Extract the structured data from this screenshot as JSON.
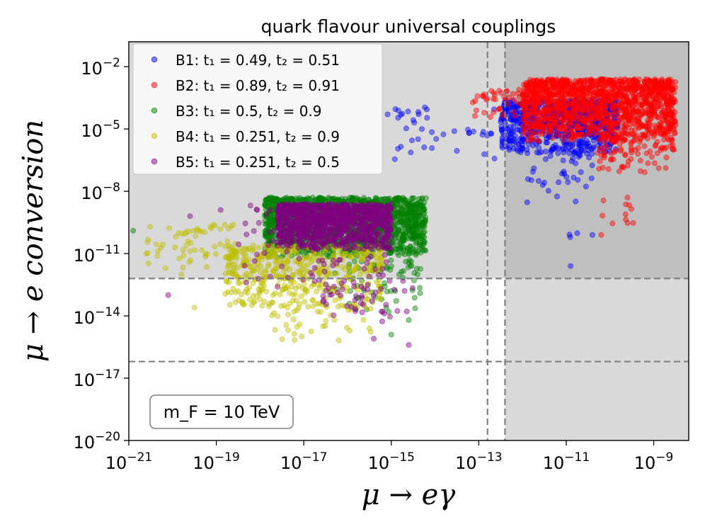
{
  "chart_data": {
    "type": "scatter",
    "title": "quark flavour universal couplings",
    "xlabel": "μ → eγ",
    "ylabel": "μ → e conversion",
    "x_scale": "log10",
    "y_scale": "log10",
    "xlim_exp": [
      -21,
      -8.2
    ],
    "ylim_exp": [
      -20,
      -0.8
    ],
    "x_ticks": [
      {
        "exp": -21,
        "base": "10",
        "sup": "−21"
      },
      {
        "exp": -19,
        "base": "10",
        "sup": "−19"
      },
      {
        "exp": -17,
        "base": "10",
        "sup": "−17"
      },
      {
        "exp": -15,
        "base": "10",
        "sup": "−15"
      },
      {
        "exp": -13,
        "base": "10",
        "sup": "−13"
      },
      {
        "exp": -11,
        "base": "10",
        "sup": "−11"
      },
      {
        "exp": -9,
        "base": "10",
        "sup": "−9"
      }
    ],
    "y_ticks": [
      {
        "exp": -20,
        "base": "10",
        "sup": "−20"
      },
      {
        "exp": -17,
        "base": "10",
        "sup": "−17"
      },
      {
        "exp": -14,
        "base": "10",
        "sup": "−14"
      },
      {
        "exp": -11,
        "base": "10",
        "sup": "−11"
      },
      {
        "exp": -8,
        "base": "10",
        "sup": "−8"
      },
      {
        "exp": -5,
        "base": "10",
        "sup": "−5"
      },
      {
        "exp": -2,
        "base": "10",
        "sup": "−2"
      }
    ],
    "excluded_regions": {
      "x_bound_exp": -12.4,
      "y_bound_exp": -12.2,
      "colors": {
        "light": "#d9d9d9",
        "dark": "#bfbfbf"
      }
    },
    "dashed_lines": {
      "vertical_exp": [
        -12.8,
        -12.4
      ],
      "horizontal_exp": [
        -12.2,
        -16.2
      ],
      "color": "#808080"
    },
    "series": [
      {
        "name": "B1",
        "label": "B1: t₁ = 0.49, t₂ = 0.51",
        "color": "#0000ff",
        "clusters": [
          {
            "x": [
              -12.5,
              -9.8
            ],
            "y": [
              -6.2,
              -3.6
            ],
            "n": 700
          },
          {
            "x": [
              -11.9,
              -10.4
            ],
            "y": [
              -8.7,
              -5.8
            ],
            "n": 40
          },
          {
            "x": [
              -15.2,
              -12.6
            ],
            "y": [
              -6.5,
              -3.8
            ],
            "n": 40
          },
          {
            "x": [
              -11.2,
              -10.7
            ],
            "y": [
              -10.6,
              -9.6
            ],
            "n": 3
          }
        ],
        "points": [
          [
            -14.3,
            -5.0
          ],
          [
            -10.9,
            -11.6
          ],
          [
            -10.4,
            -10.1
          ]
        ]
      },
      {
        "name": "B2",
        "label": "B2: t₁ = 0.89, t₂ = 0.91",
        "color": "#ff0000",
        "clusters": [
          {
            "x": [
              -12.0,
              -8.5
            ],
            "y": [
              -5.6,
              -2.6
            ],
            "n": 1400
          },
          {
            "x": [
              -10.3,
              -8.5
            ],
            "y": [
              -7.2,
              -5.4
            ],
            "n": 80
          },
          {
            "x": [
              -13.2,
              -11.9
            ],
            "y": [
              -4.6,
              -3.1
            ],
            "n": 45
          },
          {
            "x": [
              -10.2,
              -9.4
            ],
            "y": [
              -9.8,
              -8.3
            ],
            "n": 10
          }
        ],
        "points": [
          [
            -10.2,
            -10.1
          ],
          [
            -9.6,
            -8.3
          ]
        ]
      },
      {
        "name": "B3",
        "label": "B3: t₁ = 0.5, t₂ = 0.9",
        "color": "#008000",
        "clusters": [
          {
            "x": [
              -17.9,
              -14.2
            ],
            "y": [
              -11.2,
              -8.3
            ],
            "n": 1500
          },
          {
            "x": [
              -16.4,
              -14.3
            ],
            "y": [
              -14.0,
              -11.3
            ],
            "n": 60
          }
        ],
        "points": [
          [
            -20.9,
            -9.9
          ],
          [
            -14.6,
            -14.2
          ],
          [
            -15.0,
            -14.9
          ],
          [
            -14.4,
            -12.0
          ]
        ]
      },
      {
        "name": "B4",
        "label": "B4: t₁ = 0.251, t₂ = 0.9",
        "color": "#bfbf00",
        "clusters": [
          {
            "x": [
              -18.8,
              -15.2
            ],
            "y": [
              -13.6,
              -10.6
            ],
            "n": 450
          },
          {
            "x": [
              -20.6,
              -18.5
            ],
            "y": [
              -11.8,
              -9.6
            ],
            "n": 60
          },
          {
            "x": [
              -17.8,
              -15.4
            ],
            "y": [
              -15.3,
              -13.4
            ],
            "n": 45
          }
        ],
        "points": [
          [
            -20.6,
            -11.0
          ],
          [
            -19.5,
            -13.6
          ],
          [
            -18.0,
            -13.2
          ],
          [
            -15.5,
            -14.6
          ],
          [
            -19.8,
            -12.0
          ]
        ]
      },
      {
        "name": "B5",
        "label": "B5: t₁ = 0.251, t₂ = 0.5",
        "color": "#800080",
        "clusters": [
          {
            "x": [
              -17.6,
              -15.0
            ],
            "y": [
              -10.8,
              -8.6
            ],
            "n": 1000
          },
          {
            "x": [
              -18.5,
              -15.0
            ],
            "y": [
              -12.8,
              -8.6
            ],
            "n": 120
          },
          {
            "x": [
              -16.6,
              -14.4
            ],
            "y": [
              -14.6,
              -12.2
            ],
            "n": 45
          }
        ],
        "points": [
          [
            -20.1,
            -13.0
          ],
          [
            -19.6,
            -9.2
          ],
          [
            -18.9,
            -8.9
          ],
          [
            -15.4,
            -15.1
          ],
          [
            -14.6,
            -15.4
          ],
          [
            -17.6,
            -12.6
          ]
        ]
      }
    ],
    "legend": {
      "position": "top-left"
    },
    "annotation": {
      "text": "m_F = 10 TeV",
      "position": "bottom-left"
    }
  }
}
